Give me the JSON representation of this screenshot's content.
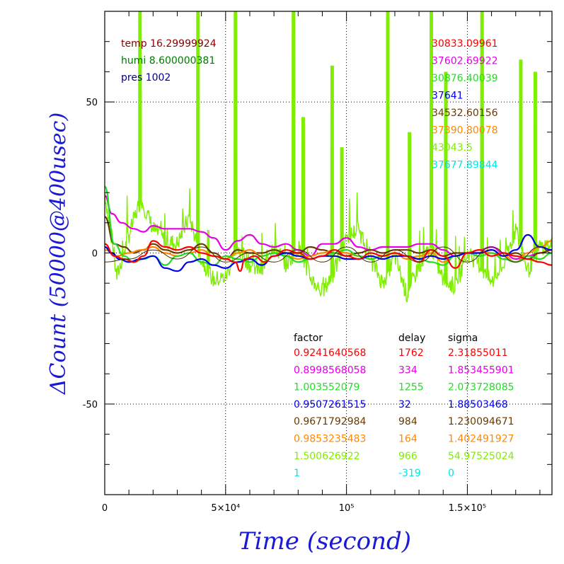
{
  "chart_data": {
    "type": "line",
    "xlabel": "Time (second)",
    "ylabel": "ΔCount (50000@400usec)",
    "xlim": [
      0,
      185000
    ],
    "ylim": [
      -80,
      80
    ],
    "x_ticks": [
      {
        "value": 0,
        "label": "0"
      },
      {
        "value": 50000,
        "label": "5×10⁴"
      },
      {
        "value": 100000,
        "label": "10⁵"
      },
      {
        "value": 150000,
        "label": "1.5×10⁵"
      }
    ],
    "y_ticks": [
      {
        "value": 50,
        "label": "50"
      },
      {
        "value": 0,
        "label": "0"
      },
      {
        "value": -50,
        "label": "-50"
      }
    ],
    "grid": "dotted at major ticks",
    "env_text": [
      {
        "text": "temp 16.29999924",
        "color": "#8b0000"
      },
      {
        "text": "humi 8.600000381",
        "color": "#007a00"
      },
      {
        "text": "pres 1002",
        "color": "#00008b"
      }
    ],
    "series_labels": [
      {
        "text": "30833.09961",
        "color": "#ff0000"
      },
      {
        "text": "37602.69922",
        "color": "#e600e6"
      },
      {
        "text": "30876.40039",
        "color": "#22dd22"
      },
      {
        "text": "37641",
        "color": "#0000ee"
      },
      {
        "text": "34532.60156",
        "color": "#6b3a00"
      },
      {
        "text": "37390.80078",
        "color": "#ff8800"
      },
      {
        "text": "43043.5",
        "color": "#80ee00"
      },
      {
        "text": "37677.89844",
        "color": "#00e5e5"
      }
    ],
    "table": {
      "headers": [
        "factor",
        "delay",
        "sigma"
      ],
      "rows": [
        {
          "factor": "0.9241640568",
          "delay": "1762",
          "sigma": "2.31855011",
          "color": "#ff0000"
        },
        {
          "factor": "0.8998568058",
          "delay": "334",
          "sigma": "1.853455901",
          "color": "#e600e6"
        },
        {
          "factor": "1.003552079",
          "delay": "1255",
          "sigma": "2.073728085",
          "color": "#22dd22"
        },
        {
          "factor": "0.9507261515",
          "delay": "32",
          "sigma": "1.88503468",
          "color": "#0000ee"
        },
        {
          "factor": "0.9671792984",
          "delay": "984",
          "sigma": "1.230094671",
          "color": "#6b3a00"
        },
        {
          "factor": "0.9853235483",
          "delay": "164",
          "sigma": "1.402491927",
          "color": "#ff8800"
        },
        {
          "factor": "1.500626922",
          "delay": "966",
          "sigma": "54.97525024",
          "color": "#80ee00"
        },
        {
          "factor": "1",
          "delay": "-319",
          "sigma": "0",
          "color": "#00e5e5"
        }
      ]
    },
    "series": [
      {
        "color": "#80ee00",
        "x": [
          0,
          5000,
          10000,
          15000,
          20000,
          25000,
          30000,
          35000,
          40000,
          45000,
          50000,
          55000,
          60000,
          65000,
          70000,
          75000,
          80000,
          85000,
          90000,
          95000,
          100000,
          105000,
          110000,
          115000,
          120000,
          125000,
          130000,
          135000,
          140000,
          145000,
          150000,
          155000,
          160000,
          165000,
          170000,
          175000,
          180000,
          185000
        ],
        "y": [
          20,
          -8,
          6,
          18,
          8,
          4,
          3,
          12,
          -2,
          -9,
          -8,
          2,
          -4,
          -6,
          3,
          -4,
          2,
          -8,
          -13,
          -6,
          5,
          8,
          -2,
          -10,
          -1,
          -14,
          -4,
          2,
          -9,
          -11,
          0,
          -4,
          -10,
          -4,
          8,
          -6,
          2,
          3
        ],
        "spikes": [
          {
            "x": 14500,
            "y": 80
          },
          {
            "x": 38500,
            "y": 80
          },
          {
            "x": 54000,
            "y": 80
          },
          {
            "x": 78000,
            "y": 80
          },
          {
            "x": 82000,
            "y": 45
          },
          {
            "x": 94000,
            "y": 62
          },
          {
            "x": 98000,
            "y": 35
          },
          {
            "x": 117000,
            "y": 80
          },
          {
            "x": 126000,
            "y": 40
          },
          {
            "x": 135000,
            "y": 80
          },
          {
            "x": 141000,
            "y": 60
          },
          {
            "x": 156000,
            "y": 80
          },
          {
            "x": 172000,
            "y": 64
          },
          {
            "x": 178000,
            "y": 60
          }
        ]
      },
      {
        "color": "#e600e6",
        "x": [
          0,
          3000,
          7000,
          12000,
          16000,
          20000,
          25000,
          30000,
          35000,
          40000,
          45000,
          50000,
          55000,
          60000,
          65000,
          70000,
          75000,
          80000,
          85000,
          90000,
          95000,
          100000,
          105000,
          110000,
          115000,
          120000,
          125000,
          130000,
          135000,
          140000,
          145000,
          150000,
          155000,
          160000,
          165000,
          170000,
          175000,
          180000,
          185000
        ],
        "y": [
          19,
          13,
          10,
          8,
          7,
          9,
          8,
          8,
          8,
          7,
          5,
          1,
          4,
          6,
          3,
          2,
          3,
          1,
          -1,
          3,
          3,
          5,
          2,
          1,
          2,
          2,
          2,
          3,
          3,
          1,
          -1,
          0,
          1,
          2,
          0,
          -2,
          -1,
          0,
          1
        ]
      },
      {
        "color": "#6b3a00",
        "x": [
          0,
          4000,
          8000,
          12000,
          16000,
          20000,
          25000,
          30000,
          35000,
          40000,
          45000,
          50000,
          55000,
          60000,
          65000,
          70000,
          75000,
          80000,
          85000,
          90000,
          95000,
          100000,
          105000,
          110000,
          115000,
          120000,
          125000,
          130000,
          135000,
          140000,
          145000,
          150000,
          155000,
          160000,
          165000,
          170000,
          175000,
          180000,
          185000
        ],
        "y": [
          12,
          3,
          2,
          0,
          1,
          3,
          1,
          0,
          1,
          3,
          0,
          -2,
          1,
          0,
          0,
          1,
          0,
          0,
          2,
          1,
          0,
          -1,
          0,
          1,
          0,
          1,
          1,
          0,
          1,
          -1,
          0,
          0,
          0,
          1,
          -1,
          0,
          -2,
          0,
          1
        ]
      },
      {
        "color": "#ff8800",
        "x": [
          0,
          5000,
          10000,
          15000,
          20000,
          25000,
          30000,
          35000,
          40000,
          45000,
          50000,
          55000,
          60000,
          65000,
          70000,
          75000,
          80000,
          85000,
          90000,
          95000,
          100000,
          105000,
          110000,
          115000,
          120000,
          125000,
          130000,
          135000,
          140000,
          145000,
          150000,
          155000,
          160000,
          165000,
          170000,
          175000,
          180000,
          185000
        ],
        "y": [
          1,
          -1,
          0,
          1,
          2,
          0,
          -1,
          0,
          1,
          -1,
          -2,
          0,
          1,
          -1,
          0,
          -1,
          -2,
          -1,
          0,
          1,
          0,
          -1,
          -2,
          -1,
          0,
          -2,
          -1,
          0,
          -3,
          -1,
          0,
          1,
          0,
          -1,
          -3,
          0,
          2,
          4
        ]
      },
      {
        "color": "#22dd22",
        "x": [
          0,
          4000,
          8000,
          12000,
          16000,
          20000,
          25000,
          30000,
          35000,
          40000,
          45000,
          50000,
          55000,
          60000,
          65000,
          70000,
          75000,
          80000,
          85000,
          90000,
          95000,
          100000,
          105000,
          110000,
          115000,
          120000,
          125000,
          130000,
          135000,
          140000,
          145000,
          150000,
          155000,
          160000,
          165000,
          170000,
          175000,
          180000,
          185000
        ],
        "y": [
          22,
          3,
          -1,
          -3,
          -2,
          -1,
          -4,
          -1,
          0,
          -3,
          -4,
          -1,
          -2,
          -3,
          -1,
          0,
          -1,
          -3,
          -2,
          -1,
          0,
          1,
          -1,
          -2,
          -1,
          0,
          -1,
          -2,
          -3,
          -4,
          -1,
          0,
          -1,
          0,
          -2,
          -3,
          -1,
          -2,
          0
        ]
      },
      {
        "color": "#0000ee",
        "x": [
          0,
          3000,
          6000,
          10000,
          15000,
          20000,
          25000,
          30000,
          35000,
          40000,
          45000,
          50000,
          55000,
          60000,
          65000,
          70000,
          75000,
          80000,
          85000,
          90000,
          95000,
          100000,
          105000,
          110000,
          115000,
          120000,
          125000,
          130000,
          135000,
          140000,
          145000,
          150000,
          155000,
          160000,
          165000,
          170000,
          175000,
          180000,
          185000
        ],
        "y": [
          2,
          0,
          -2,
          -3,
          -2,
          -1,
          -5,
          -6,
          -3,
          -2,
          -4,
          -5,
          -3,
          -2,
          -4,
          -1,
          0,
          -1,
          -2,
          -1,
          -1,
          -2,
          -2,
          -1,
          -2,
          -1,
          -1,
          -2,
          -1,
          -2,
          -1,
          0,
          0,
          1,
          -1,
          1,
          6,
          2,
          1
        ]
      },
      {
        "color": "#ff0000",
        "x": [
          0,
          4000,
          8000,
          12000,
          16000,
          20000,
          25000,
          30000,
          35000,
          40000,
          45000,
          50000,
          54000,
          56000,
          58000,
          62000,
          66000,
          70000,
          75000,
          80000,
          85000,
          90000,
          95000,
          100000,
          105000,
          110000,
          115000,
          120000,
          125000,
          130000,
          135000,
          140000,
          145000,
          150000,
          155000,
          160000,
          165000,
          170000,
          175000,
          180000,
          185000
        ],
        "y": [
          3,
          -1,
          -2,
          -3,
          -1,
          4,
          2,
          1,
          2,
          0,
          -1,
          -2,
          -3,
          -6,
          -2,
          -1,
          -3,
          -1,
          1,
          0,
          -2,
          -1,
          1,
          -1,
          -2,
          0,
          -1,
          0,
          -1,
          -3,
          1,
          -1,
          -5,
          0,
          1,
          -1,
          0,
          -1,
          -2,
          -3,
          -4
        ]
      },
      {
        "color": "#4a2a00",
        "x": [
          0,
          10000,
          20000,
          30000,
          40000,
          50000,
          60000,
          70000,
          80000,
          90000,
          100000,
          110000,
          120000,
          130000,
          140000,
          150000,
          160000,
          170000,
          180000,
          185000
        ],
        "y": [
          -3,
          -2,
          1,
          -2,
          2,
          -3,
          0,
          -3,
          1,
          -3,
          2,
          -3,
          1,
          -3,
          2,
          -3,
          2,
          -3,
          2,
          0
        ],
        "thin": true
      }
    ]
  }
}
